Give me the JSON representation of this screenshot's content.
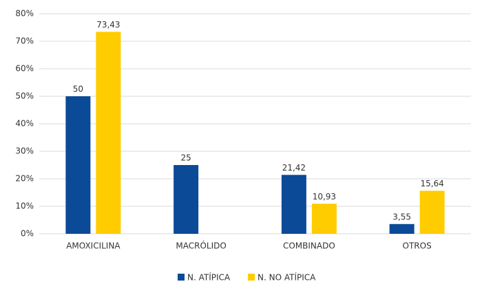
{
  "chart_data": {
    "type": "bar",
    "categories": [
      "AMOXICILINA",
      "MACRÓLIDO",
      "COMBINADO",
      "OTROS"
    ],
    "series": [
      {
        "name": "N. ATÍPICA",
        "color": "#0b4a97",
        "values": [
          50,
          25,
          21.42,
          3.55
        ],
        "value_labels": [
          "50",
          "25",
          "21,42",
          "3,55"
        ]
      },
      {
        "name": "N. NO ATÍPICA",
        "color": "#ffcc00",
        "values": [
          73.43,
          null,
          10.93,
          15.64
        ],
        "value_labels": [
          "73,43",
          null,
          "10,93",
          "15,64"
        ]
      }
    ],
    "ylim": [
      0,
      80
    ],
    "yticks": [
      {
        "value": 0,
        "label": "0%"
      },
      {
        "value": 10,
        "label": "10%"
      },
      {
        "value": 20,
        "label": "20%"
      },
      {
        "value": 30,
        "label": "30%"
      },
      {
        "value": 40,
        "label": "40%"
      },
      {
        "value": 50,
        "label": "50%"
      },
      {
        "value": 60,
        "label": "60%"
      },
      {
        "value": 70,
        "label": "70%"
      },
      {
        "value": 80,
        "label": "80%"
      }
    ],
    "grid": true
  }
}
